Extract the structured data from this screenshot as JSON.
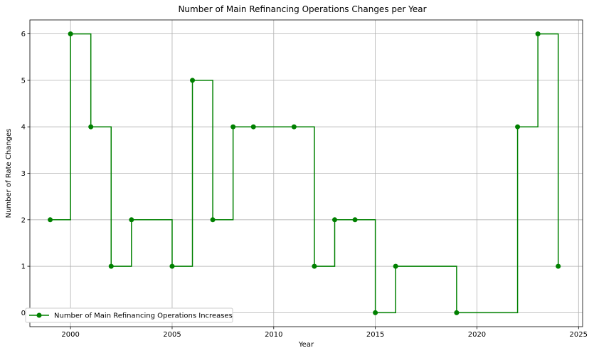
{
  "chart_data": {
    "type": "line",
    "title": "Number of Main Refinancing Operations Changes per Year",
    "xlabel": "Year",
    "ylabel": "Number of Rate Changes",
    "xlim": [
      1998,
      2025.2
    ],
    "ylim": [
      -0.3,
      6.3
    ],
    "xticks": [
      2000,
      2005,
      2010,
      2015,
      2020,
      2025
    ],
    "yticks": [
      0,
      1,
      2,
      3,
      4,
      5,
      6
    ],
    "grid": true,
    "legend_position": "bottom-left",
    "line_style": "steps-post",
    "series": [
      {
        "name": "Number of Main Refinancing Operations Increases",
        "color": "#008000",
        "marker": "circle",
        "x": [
          1999,
          2000,
          2001,
          2002,
          2003,
          2005,
          2006,
          2007,
          2008,
          2009,
          2011,
          2012,
          2013,
          2014,
          2015,
          2016,
          2019,
          2022,
          2023,
          2024
        ],
        "y": [
          2,
          6,
          4,
          1,
          2,
          1,
          5,
          2,
          4,
          4,
          4,
          1,
          2,
          2,
          0,
          1,
          0,
          4,
          6,
          1
        ]
      }
    ]
  }
}
